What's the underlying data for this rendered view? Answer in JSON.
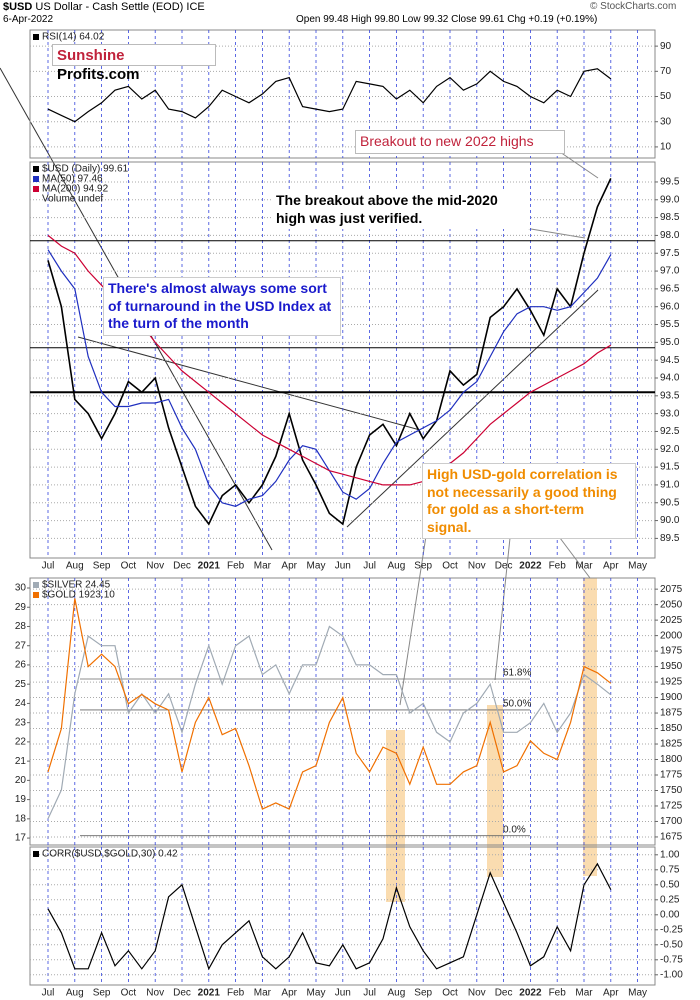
{
  "header": {
    "symbol": "$USD",
    "name": "US Dollar - Cash Settle (EOD) ICE",
    "date": "6-Apr-2022",
    "quote": "Open 99.48 High 99.80 Low 99.32 Close 99.61 Chg +0.19 (+0.19%)",
    "credit": "© StockCharts.com"
  },
  "logo": {
    "left": "Sunshine",
    "right": "Profits.com"
  },
  "annotations": [
    "Breakout to new 2022 highs",
    "The breakout above the mid-2020 high was just verified.",
    "There's almost always some sort of turnaround in the USD Index at the turn of the month",
    "High USD-gold correlation is not necessarily a good thing for gold as a short-term signal."
  ],
  "chart_data": [
    {
      "type": "line",
      "grid": true,
      "series": [
        {
          "name": "RSI(14) 64.02",
          "color": "#000000",
          "values": [
            40,
            35,
            30,
            38,
            45,
            55,
            58,
            48,
            55,
            40,
            38,
            33,
            42,
            55,
            50,
            45,
            52,
            62,
            65,
            42,
            40,
            38,
            40,
            62,
            60,
            58,
            48,
            55,
            45,
            58,
            65,
            55,
            60,
            70,
            62,
            58,
            50,
            45,
            55,
            50,
            70,
            72,
            64,
            null,
            null
          ]
        }
      ],
      "ylim": [
        1.2,
        102.8
      ],
      "yticks": [
        90,
        70,
        50,
        30,
        10
      ]
    },
    {
      "type": "line",
      "grid": true,
      "categories": [
        "Jul",
        null,
        "Aug",
        null,
        "Sep",
        null,
        "Oct",
        null,
        "Nov",
        null,
        "Dec",
        null,
        "2021",
        null,
        "Feb",
        null,
        "Mar",
        null,
        "Apr",
        null,
        "May",
        null,
        "Jun",
        null,
        "Jul",
        null,
        "Aug",
        null,
        "Sep",
        null,
        "Oct",
        null,
        "Nov",
        null,
        "Dec",
        null,
        "2022",
        null,
        "Feb",
        null,
        "Mar",
        null,
        "Apr",
        null,
        "May"
      ],
      "series": [
        {
          "name": "$USD (Daily) 99.61",
          "color": "#000000",
          "values": [
            97.3,
            96.0,
            93.4,
            93.0,
            92.3,
            93.0,
            93.9,
            93.6,
            94.0,
            92.6,
            91.5,
            90.4,
            89.9,
            90.7,
            91.0,
            90.5,
            91.0,
            91.8,
            93.0,
            91.7,
            91.0,
            90.2,
            89.9,
            91.5,
            92.4,
            92.7,
            92.1,
            93.0,
            92.3,
            92.8,
            94.2,
            93.8,
            94.1,
            95.7,
            96.0,
            96.5,
            95.9,
            95.2,
            96.5,
            96.0,
            97.5,
            98.8,
            99.6,
            null,
            null
          ]
        },
        {
          "name": "MA(50) 97.46",
          "color": "#1f2fbf",
          "values": [
            97.6,
            97.0,
            96.5,
            94.6,
            93.6,
            93.2,
            93.2,
            93.3,
            93.3,
            93.4,
            92.6,
            92.0,
            91.0,
            90.5,
            90.4,
            90.6,
            90.7,
            91.1,
            91.7,
            92.1,
            92.0,
            91.4,
            90.8,
            90.6,
            90.9,
            91.6,
            92.2,
            92.4,
            92.6,
            92.8,
            93.1,
            93.6,
            93.9,
            94.6,
            95.3,
            95.8,
            96.0,
            96.0,
            95.9,
            96.0,
            96.4,
            96.8,
            97.46,
            null,
            null
          ]
        },
        {
          "name": "MA(200) 94.92",
          "color": "#cc0033",
          "values": [
            98.0,
            97.7,
            97.5,
            97.0,
            96.6,
            96.2,
            95.8,
            95.5,
            95.0,
            94.6,
            94.2,
            93.9,
            93.6,
            93.3,
            93.0,
            92.7,
            92.4,
            92.2,
            92.0,
            91.8,
            91.6,
            91.4,
            91.3,
            91.2,
            91.1,
            91.0,
            91.0,
            91.0,
            91.1,
            91.3,
            91.6,
            91.9,
            92.3,
            92.7,
            93.0,
            93.3,
            93.6,
            93.8,
            94.0,
            94.2,
            94.4,
            94.7,
            94.92,
            null,
            null
          ]
        }
      ],
      "legend_note": "Volume undef",
      "ylim": [
        88.95,
        100.06
      ],
      "yticks": [
        99.5,
        {
          "value": 99,
          "label": "99.0"
        },
        98.5,
        {
          "value": 98,
          "label": "98.0"
        },
        97.5,
        {
          "value": 97,
          "label": "97.0"
        },
        96.5,
        {
          "value": 96,
          "label": "96.0"
        },
        95.5,
        {
          "value": 95,
          "label": "95.0"
        },
        94.5,
        {
          "value": 94,
          "label": "94.0"
        },
        93.5,
        {
          "value": 93,
          "label": "93.0"
        },
        92.5,
        {
          "value": 92,
          "label": "92.0"
        },
        91.5,
        {
          "value": 91,
          "label": "91.0"
        },
        90.5,
        {
          "value": 90,
          "label": "90.0"
        },
        89.5
      ],
      "hlines": [
        97.85,
        94.85,
        93.6
      ]
    },
    {
      "type": "line",
      "grid": true,
      "series": [
        {
          "name": "$SILVER 24.45",
          "color": "#a0aab4",
          "values": [
            18,
            19.5,
            24.5,
            27.5,
            27,
            27,
            23.5,
            24.5,
            23.5,
            24.5,
            22.5,
            25,
            27,
            25,
            27,
            27.5,
            25.5,
            26,
            24.5,
            26,
            26,
            28,
            27.5,
            26,
            26,
            25.5,
            25.5,
            23.5,
            24,
            22.5,
            22,
            23.5,
            24,
            25,
            22.5,
            22.5,
            23,
            24,
            22.5,
            23.5,
            25.5,
            25,
            24.45,
            null,
            null
          ]
        },
        {
          "name": "$GOLD 1923.10",
          "color": "#f07000",
          "axis": "y2",
          "values": [
            1780,
            1850,
            2060,
            1950,
            1970,
            1950,
            1890,
            1905,
            1890,
            1880,
            1780,
            1860,
            1900,
            1840,
            1850,
            1790,
            1720,
            1730,
            1720,
            1780,
            1790,
            1860,
            1900,
            1810,
            1780,
            1820,
            1810,
            1760,
            1820,
            1760,
            1760,
            1780,
            1790,
            1860,
            1780,
            1790,
            1830,
            1810,
            1800,
            1860,
            1950,
            1940,
            1923.1,
            null,
            null
          ]
        }
      ],
      "ylim": [
        16.64,
        30.52
      ],
      "yticks": [
        30,
        29,
        28,
        27,
        26,
        25,
        24,
        23,
        22,
        21,
        20,
        19,
        18,
        17
      ],
      "y2lim": [
        1662,
        2093
      ],
      "y2ticks": [
        2075,
        2050,
        2025,
        2000,
        1975,
        1950,
        1925,
        1900,
        1875,
        1850,
        1825,
        1800,
        1775,
        1750,
        1725,
        1700,
        1675
      ],
      "fib": [
        {
          "value": 1930,
          "label": "61.8%"
        },
        {
          "value": 1880,
          "label": "50.0%"
        },
        {
          "value": 1677,
          "label": "0.0%"
        }
      ]
    },
    {
      "type": "line",
      "grid": true,
      "categories": [
        "Jul",
        null,
        "Aug",
        null,
        "Sep",
        null,
        "Oct",
        null,
        "Nov",
        null,
        "Dec",
        null,
        "2021",
        null,
        "Feb",
        null,
        "Mar",
        null,
        "Apr",
        null,
        "May",
        null,
        "Jun",
        null,
        "Jul",
        null,
        "Aug",
        null,
        "Sep",
        null,
        "Oct",
        null,
        "Nov",
        null,
        "Dec",
        null,
        "2022",
        null,
        "Feb",
        null,
        "Mar",
        null,
        "Apr",
        null,
        "May"
      ],
      "series": [
        {
          "name": "CORR($USD,$GOLD,30) 0.42",
          "color": "#000000",
          "values": [
            0.1,
            -0.3,
            -0.9,
            -0.9,
            -0.3,
            -0.85,
            -0.6,
            -0.9,
            -0.6,
            0.3,
            0.5,
            -0.2,
            -0.9,
            -0.5,
            -0.3,
            -0.1,
            -0.7,
            -0.9,
            -0.7,
            -0.3,
            -0.8,
            -0.85,
            -0.5,
            -0.9,
            -0.8,
            -0.4,
            0.45,
            -0.2,
            -0.6,
            -0.9,
            -0.8,
            -0.7,
            0.0,
            0.7,
            0.2,
            -0.3,
            -0.85,
            -0.7,
            -0.2,
            -0.6,
            0.5,
            0.85,
            0.42,
            null,
            null
          ]
        }
      ],
      "ylim": [
        -1.17,
        1.13
      ],
      "yticks": [
        {
          "value": 1,
          "label": "1.00"
        },
        0.75,
        {
          "value": 0.5,
          "label": "0.50"
        },
        0.25,
        {
          "value": 0,
          "label": "0.00"
        },
        -0.25,
        {
          "value": -0.5,
          "label": "-0.50"
        },
        -0.75,
        {
          "value": -1,
          "label": "-1.00"
        }
      ]
    }
  ]
}
